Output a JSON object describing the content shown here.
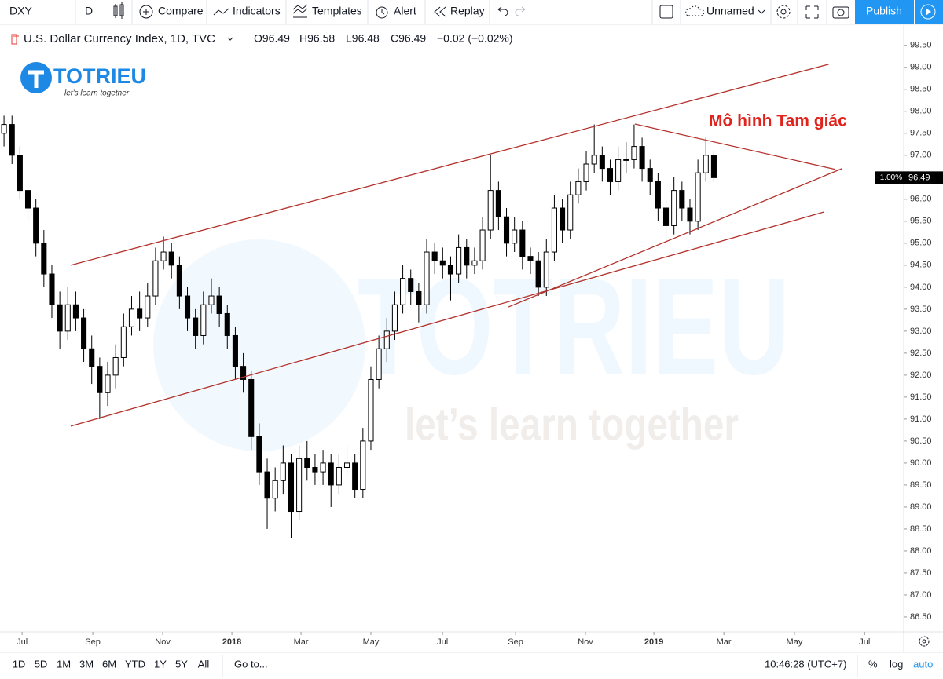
{
  "toolbar": {
    "symbol": "DXY",
    "interval": "D",
    "compare": "Compare",
    "indicators": "Indicators",
    "templates": "Templates",
    "alert": "Alert",
    "replay": "Replay",
    "layout_name": "Unnamed",
    "publish": "Publish"
  },
  "legend": {
    "name": "U.S. Dollar Currency Index, 1D, TVC",
    "open": "O96.49",
    "high": "H96.58",
    "low": "L96.48",
    "close": "C96.49",
    "change": "−0.02 (−0.02%)"
  },
  "logo": {
    "name": "TOTRIEU",
    "slogan": "let’s learn together"
  },
  "watermark": {
    "name": "TOTRIEU",
    "slogan": "let’s learn together"
  },
  "chart_data": {
    "type": "candlestick",
    "candles": [
      [
        97.5,
        97.9,
        97.2,
        97.7
      ],
      [
        97.7,
        97.9,
        96.8,
        97.0
      ],
      [
        97.0,
        97.2,
        96.0,
        96.2
      ],
      [
        96.2,
        96.4,
        95.5,
        95.8
      ],
      [
        95.8,
        96.0,
        94.7,
        95.0
      ],
      [
        95.0,
        95.3,
        94.0,
        94.3
      ],
      [
        94.3,
        94.5,
        93.3,
        93.6
      ],
      [
        93.6,
        93.9,
        92.6,
        93.0
      ],
      [
        93.0,
        94.0,
        92.8,
        93.6
      ],
      [
        93.6,
        93.9,
        93.0,
        93.3
      ],
      [
        93.3,
        93.5,
        92.3,
        92.6
      ],
      [
        92.6,
        92.9,
        91.8,
        92.2
      ],
      [
        92.2,
        92.4,
        91.0,
        91.6
      ],
      [
        91.6,
        92.3,
        91.3,
        92.0
      ],
      [
        92.0,
        92.7,
        91.7,
        92.4
      ],
      [
        92.4,
        93.4,
        92.2,
        93.1
      ],
      [
        93.1,
        93.8,
        92.9,
        93.5
      ],
      [
        93.5,
        93.9,
        93.0,
        93.3
      ],
      [
        93.3,
        94.1,
        93.1,
        93.8
      ],
      [
        93.8,
        94.9,
        93.6,
        94.6
      ],
      [
        94.6,
        95.15,
        94.4,
        94.8
      ],
      [
        94.8,
        95.0,
        94.2,
        94.5
      ],
      [
        94.5,
        94.7,
        93.5,
        93.8
      ],
      [
        93.8,
        94.0,
        93.0,
        93.3
      ],
      [
        93.3,
        93.5,
        92.6,
        92.9
      ],
      [
        92.9,
        93.9,
        92.7,
        93.6
      ],
      [
        93.6,
        94.2,
        93.4,
        93.8
      ],
      [
        93.8,
        94.0,
        93.1,
        93.4
      ],
      [
        93.4,
        93.6,
        92.6,
        92.9
      ],
      [
        92.9,
        93.1,
        91.9,
        92.2
      ],
      [
        92.2,
        92.5,
        91.6,
        91.9
      ],
      [
        91.9,
        92.1,
        90.3,
        90.6
      ],
      [
        90.6,
        90.9,
        89.5,
        89.8
      ],
      [
        89.8,
        90.1,
        88.5,
        89.2
      ],
      [
        89.2,
        89.9,
        88.9,
        89.6
      ],
      [
        89.6,
        90.4,
        89.3,
        90.0
      ],
      [
        90.0,
        90.2,
        88.3,
        88.9
      ],
      [
        88.9,
        90.4,
        88.7,
        90.1
      ],
      [
        90.1,
        90.5,
        89.6,
        89.9
      ],
      [
        89.9,
        90.2,
        89.5,
        89.8
      ],
      [
        89.8,
        90.3,
        89.5,
        90.0
      ],
      [
        90.0,
        90.2,
        89.0,
        89.5
      ],
      [
        89.5,
        90.2,
        89.3,
        89.9
      ],
      [
        89.9,
        90.4,
        89.7,
        90.0
      ],
      [
        90.0,
        90.2,
        89.2,
        89.4
      ],
      [
        89.4,
        90.8,
        89.2,
        90.5
      ],
      [
        90.5,
        92.2,
        90.3,
        91.9
      ],
      [
        91.9,
        92.9,
        91.7,
        92.6
      ],
      [
        92.6,
        93.3,
        92.3,
        93.0
      ],
      [
        93.0,
        93.9,
        92.8,
        93.6
      ],
      [
        93.6,
        94.5,
        93.4,
        94.2
      ],
      [
        94.2,
        94.4,
        93.6,
        93.9
      ],
      [
        93.9,
        94.1,
        93.2,
        93.6
      ],
      [
        93.6,
        95.1,
        93.4,
        94.8
      ],
      [
        94.8,
        95.0,
        94.3,
        94.6
      ],
      [
        94.6,
        94.9,
        94.2,
        94.5
      ],
      [
        94.5,
        94.7,
        93.7,
        94.3
      ],
      [
        94.3,
        95.2,
        94.1,
        94.9
      ],
      [
        94.9,
        95.1,
        94.2,
        94.5
      ],
      [
        94.5,
        94.9,
        94.3,
        94.6
      ],
      [
        94.6,
        95.6,
        94.4,
        95.3
      ],
      [
        95.3,
        97.0,
        95.1,
        96.2
      ],
      [
        96.2,
        96.4,
        95.3,
        95.6
      ],
      [
        95.6,
        95.8,
        94.7,
        95.0
      ],
      [
        95.0,
        95.6,
        94.8,
        95.3
      ],
      [
        95.3,
        95.5,
        94.4,
        94.7
      ],
      [
        94.7,
        94.9,
        94.3,
        94.6
      ],
      [
        94.6,
        94.8,
        93.8,
        94.0
      ],
      [
        94.0,
        95.1,
        93.8,
        94.8
      ],
      [
        94.8,
        96.1,
        94.6,
        95.8
      ],
      [
        95.8,
        96.0,
        95.0,
        95.3
      ],
      [
        95.3,
        96.4,
        95.1,
        96.1
      ],
      [
        96.1,
        96.7,
        95.9,
        96.4
      ],
      [
        96.4,
        97.1,
        96.2,
        96.8
      ],
      [
        96.8,
        97.7,
        96.6,
        97.0
      ],
      [
        97.0,
        97.2,
        96.4,
        96.7
      ],
      [
        96.7,
        96.9,
        96.1,
        96.4
      ],
      [
        96.4,
        97.2,
        96.2,
        96.9
      ],
      [
        96.9,
        97.3,
        96.6,
        96.9
      ],
      [
        96.9,
        97.7,
        96.7,
        97.2
      ],
      [
        97.2,
        97.4,
        96.4,
        96.7
      ],
      [
        96.7,
        96.9,
        96.1,
        96.4
      ],
      [
        96.4,
        96.6,
        95.5,
        95.8
      ],
      [
        95.8,
        96.0,
        95.0,
        95.4
      ],
      [
        95.4,
        96.5,
        95.2,
        96.2
      ],
      [
        96.2,
        96.4,
        95.5,
        95.8
      ],
      [
        95.8,
        96.0,
        95.2,
        95.5
      ],
      [
        95.5,
        96.9,
        95.3,
        96.6
      ],
      [
        96.6,
        97.4,
        96.4,
        97.0
      ],
      [
        97.0,
        97.1,
        96.4,
        96.49
      ]
    ],
    "up_color": "#ffffff",
    "down_color": "#000000",
    "wick_color": "#000000",
    "xlim": [
      -0.5,
      112.8
    ],
    "xticks": [
      {
        "value": 2.27,
        "label": "Jul"
      },
      {
        "value": 11.13,
        "label": "Sep"
      },
      {
        "value": 19.9,
        "label": "Nov"
      },
      {
        "value": 28.57,
        "label": "2018"
      },
      {
        "value": 37.24,
        "label": "Mar"
      },
      {
        "value": 46.0,
        "label": "May"
      },
      {
        "value": 54.98,
        "label": "Jul"
      },
      {
        "value": 64.14,
        "label": "Sep"
      },
      {
        "value": 72.9,
        "label": "Nov"
      },
      {
        "value": 81.48,
        "label": "2019"
      },
      {
        "value": 90.25,
        "label": "Mar"
      },
      {
        "value": 99.1,
        "label": "May"
      },
      {
        "value": 107.9,
        "label": "Jul"
      }
    ],
    "ylim": [
      86.16,
      99.96
    ],
    "yticks": [
      {
        "value": 86.5,
        "label": "86.50"
      },
      {
        "value": 87,
        "label": "87.00"
      },
      {
        "value": 87.5,
        "label": "87.50"
      },
      {
        "value": 88,
        "label": "88.00"
      },
      {
        "value": 88.5,
        "label": "88.50"
      },
      {
        "value": 89,
        "label": "89.00"
      },
      {
        "value": 89.5,
        "label": "89.50"
      },
      {
        "value": 90,
        "label": "90.00"
      },
      {
        "value": 90.5,
        "label": "90.50"
      },
      {
        "value": 91,
        "label": "91.00"
      },
      {
        "value": 91.5,
        "label": "91.50"
      },
      {
        "value": 92,
        "label": "92.00"
      },
      {
        "value": 92.5,
        "label": "92.50"
      },
      {
        "value": 93,
        "label": "93.00"
      },
      {
        "value": 93.5,
        "label": "93.50"
      },
      {
        "value": 94,
        "label": "94.00"
      },
      {
        "value": 94.5,
        "label": "94.50"
      },
      {
        "value": 95,
        "label": "95.00"
      },
      {
        "value": 95.5,
        "label": "95.50"
      },
      {
        "value": 96,
        "label": "96.00"
      },
      {
        "value": 96.5,
        "label": "96.50"
      },
      {
        "value": 97,
        "label": "97.00"
      },
      {
        "value": 97.5,
        "label": "97.50"
      },
      {
        "value": 98,
        "label": "98.00"
      },
      {
        "value": 98.5,
        "label": "98.50"
      },
      {
        "value": 99,
        "label": "99.00"
      },
      {
        "value": 99.5,
        "label": "99.50"
      }
    ],
    "grid": false,
    "trendline_color": "#b3312b",
    "trendlines": [
      {
        "points": [
          [
            8.37,
            94.5
          ],
          [
            103.4,
            99.07
          ]
        ]
      },
      {
        "points": [
          [
            8.37,
            90.84
          ],
          [
            102.8,
            95.71
          ]
        ]
      },
      {
        "points": [
          [
            79.1,
            97.71
          ],
          [
            104.2,
            96.68
          ]
        ]
      },
      {
        "points": [
          [
            63.25,
            93.55
          ],
          [
            105.1,
            96.7
          ]
        ]
      }
    ],
    "annotation": "Mô hình Tam giác",
    "annotation_color": "#e0231c",
    "last_price": {
      "value": 96.49,
      "label": "96.49"
    },
    "last_change": "−1.00%"
  },
  "bottom_bar": {
    "ranges": [
      "1D",
      "5D",
      "1M",
      "3M",
      "6M",
      "YTD",
      "1Y",
      "5Y",
      "All"
    ],
    "goto": "Go to...",
    "clock": "10:46:28 (UTC+7)",
    "percent": "%",
    "log": "log",
    "auto": "auto"
  }
}
